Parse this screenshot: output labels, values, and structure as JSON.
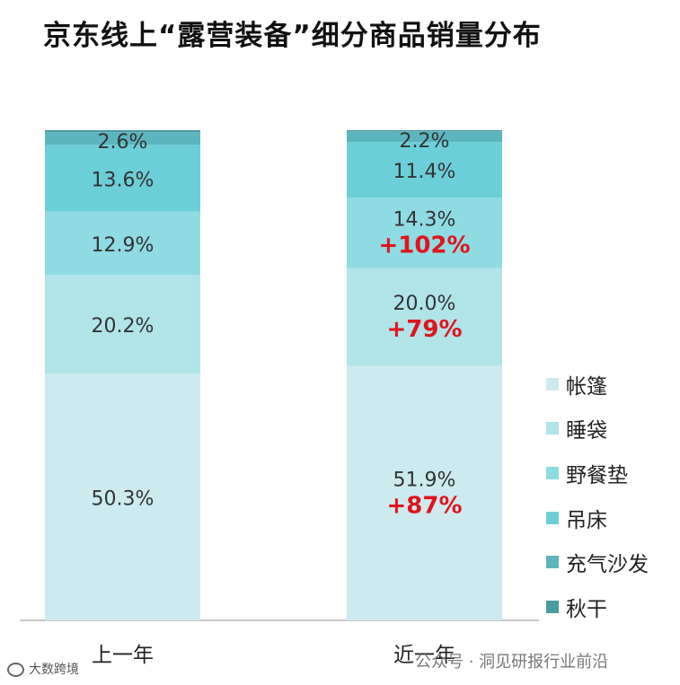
{
  "title": "京东线上“露营装备”细分商品销量分布",
  "chart_data": {
    "type": "bar",
    "stacked": true,
    "percent_stacked": true,
    "categories": [
      "上一年",
      "近一年"
    ],
    "series": [
      {
        "name": "帐篷",
        "values": [
          50.3,
          51.9
        ],
        "growth": [
          "",
          "+87%"
        ],
        "color": "#cdebef"
      },
      {
        "name": "睡袋",
        "values": [
          20.2,
          20.0
        ],
        "growth": [
          "",
          "+79%"
        ],
        "color": "#b0e4e9"
      },
      {
        "name": "野餐垫",
        "values": [
          12.9,
          14.3
        ],
        "growth": [
          "",
          "+102%"
        ],
        "color": "#8fdbe2"
      },
      {
        "name": "吊床",
        "values": [
          13.6,
          11.4
        ],
        "growth": [
          "",
          ""
        ],
        "color": "#6ccfd8"
      },
      {
        "name": "充气沙发",
        "values": [
          2.6,
          2.2
        ],
        "growth": [
          "",
          ""
        ],
        "color": "#5cb5bd"
      },
      {
        "name": "秋干",
        "values": [
          0.4,
          0.2
        ],
        "growth": [
          "",
          ""
        ],
        "color": "#4a9aa0"
      }
    ],
    "value_suffix": "%",
    "legend_position": "right",
    "growth_color": "#e0141c"
  },
  "watermark_text": "大数跨境",
  "footer_note": "公众号 · 洞见研报行业前沿"
}
